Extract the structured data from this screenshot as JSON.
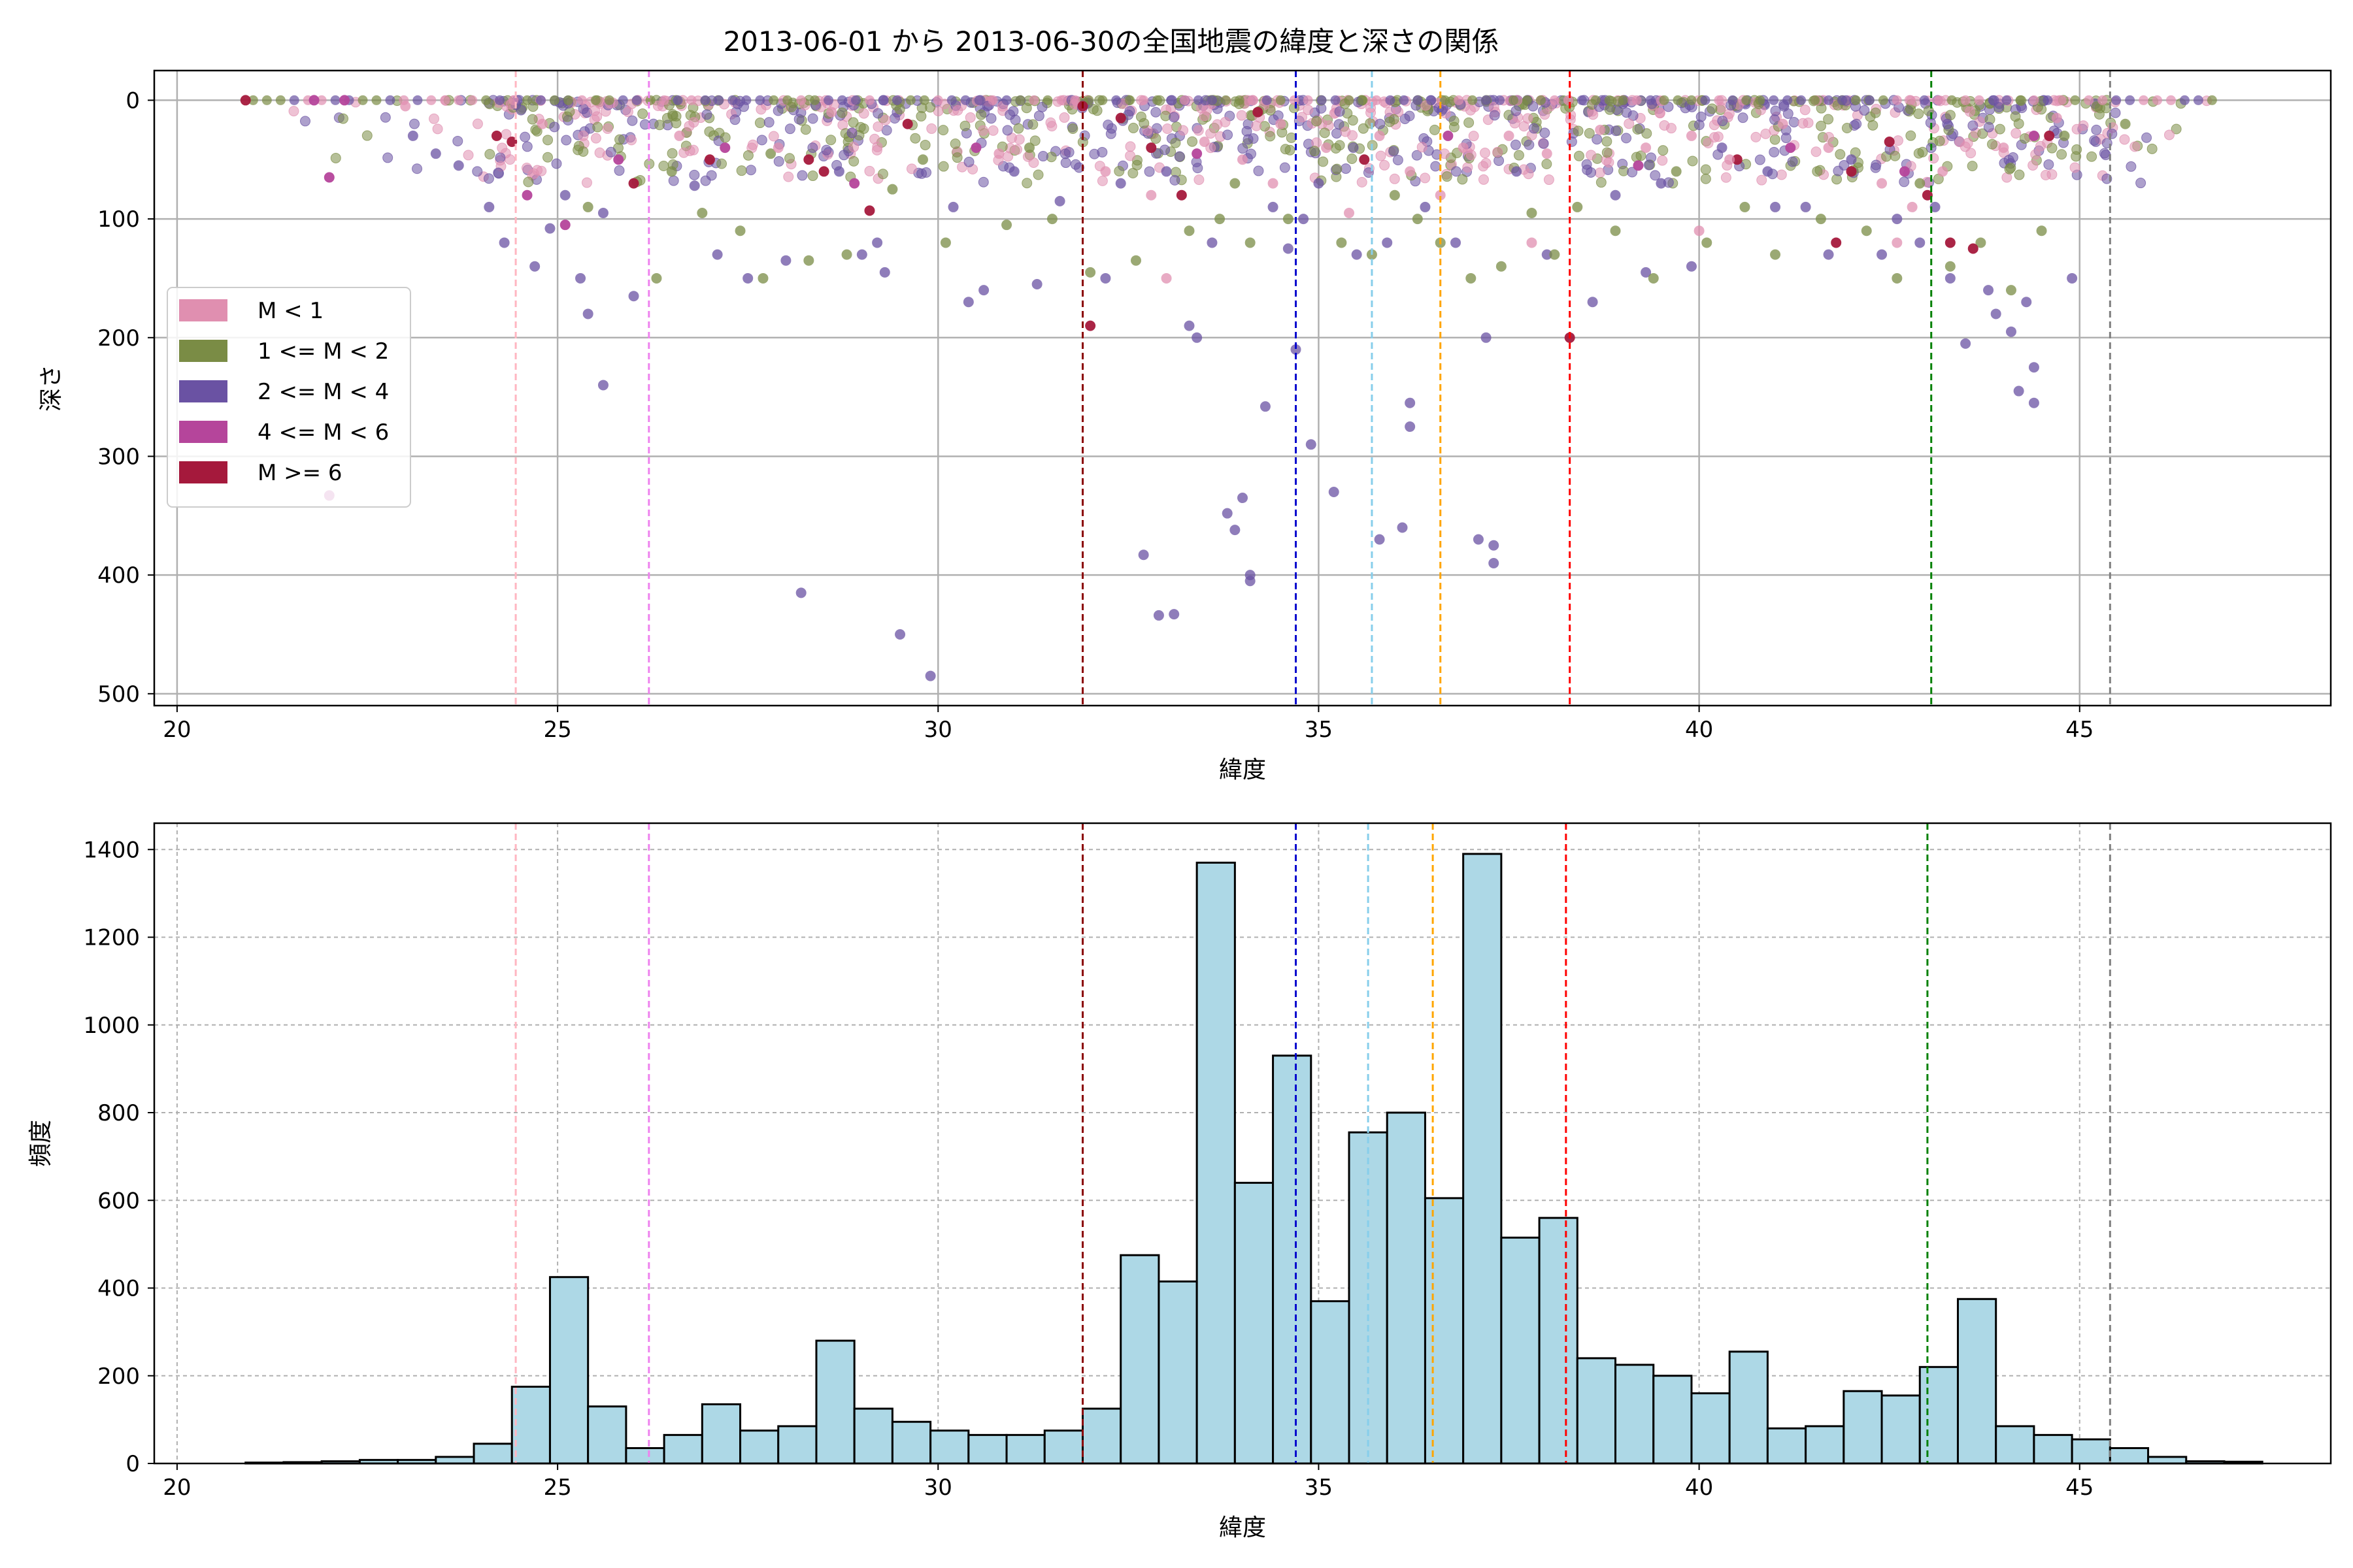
{
  "title": "2013-06-01 から 2013-06-30の全国地震の緯度と深さの関係",
  "chart_data": [
    {
      "type": "scatter",
      "title": "2013-06-01 から 2013-06-30の全国地震の緯度と深さの関係",
      "xlabel": "緯度",
      "ylabel": "深さ",
      "xlim": [
        19.7,
        48.3
      ],
      "ylim": [
        510,
        -25
      ],
      "y_inverted": true,
      "xticks": [
        20,
        25,
        30,
        35,
        40,
        45
      ],
      "yticks": [
        0,
        100,
        200,
        300,
        400,
        500
      ],
      "grid": true,
      "legend_position": "center-left",
      "legend": [
        {
          "label": "M < 1",
          "color": "#e08fb0"
        },
        {
          "label": "1 <= M < 2",
          "color": "#7a8c45"
        },
        {
          "label": "2 <= M < 4",
          "color": "#6a52a3"
        },
        {
          "label": "4 <= M < 6",
          "color": "#b5459b"
        },
        {
          "label": "M >= 6",
          "color": "#a5193c"
        }
      ],
      "vlines": [
        {
          "x": 24.45,
          "color": "#ffb6c1"
        },
        {
          "x": 26.2,
          "color": "#ee82ee"
        },
        {
          "x": 31.9,
          "color": "#8b0000"
        },
        {
          "x": 34.7,
          "color": "#0000cd"
        },
        {
          "x": 35.7,
          "color": "#87ceeb"
        },
        {
          "x": 36.6,
          "color": "#ffa500"
        },
        {
          "x": 38.3,
          "color": "#ff0000"
        },
        {
          "x": 43.05,
          "color": "#008000"
        },
        {
          "x": 45.4,
          "color": "#808080"
        }
      ],
      "series": [
        {
          "name": "2 <= M < 4",
          "points": [
            [
              24.7,
              140
            ],
            [
              24.9,
              108
            ],
            [
              25.3,
              150
            ],
            [
              25.4,
              180
            ],
            [
              25.6,
              240
            ],
            [
              26.0,
              165
            ],
            [
              27.5,
              150
            ],
            [
              28.0,
              135
            ],
            [
              28.2,
              415
            ],
            [
              29.5,
              450
            ],
            [
              29.9,
              485
            ],
            [
              29.3,
              145
            ],
            [
              30.4,
              170
            ],
            [
              30.6,
              160
            ],
            [
              31.3,
              155
            ],
            [
              32.2,
              150
            ],
            [
              32.7,
              383
            ],
            [
              32.9,
              434
            ],
            [
              33.1,
              433
            ],
            [
              33.3,
              190
            ],
            [
              33.4,
              200
            ],
            [
              34.0,
              335
            ],
            [
              34.1,
              400
            ],
            [
              34.1,
              405
            ],
            [
              33.8,
              348
            ],
            [
              33.9,
              362
            ],
            [
              34.3,
              258
            ],
            [
              34.6,
              125
            ],
            [
              34.7,
              210
            ],
            [
              34.8,
              100
            ],
            [
              34.9,
              290
            ],
            [
              35.2,
              330
            ],
            [
              35.5,
              130
            ],
            [
              35.8,
              370
            ],
            [
              36.1,
              360
            ],
            [
              36.2,
              255
            ],
            [
              36.2,
              275
            ],
            [
              37.1,
              370
            ],
            [
              37.2,
              200
            ],
            [
              37.3,
              375
            ],
            [
              37.3,
              390
            ],
            [
              38.0,
              130
            ],
            [
              38.6,
              170
            ],
            [
              39.3,
              145
            ],
            [
              39.9,
              140
            ],
            [
              41.0,
              90
            ],
            [
              41.7,
              130
            ],
            [
              42.4,
              130
            ],
            [
              42.9,
              120
            ],
            [
              43.3,
              150
            ],
            [
              43.5,
              205
            ],
            [
              43.8,
              160
            ],
            [
              44.1,
              195
            ],
            [
              44.3,
              170
            ],
            [
              44.4,
              225
            ],
            [
              44.4,
              255
            ],
            [
              44.2,
              245
            ],
            [
              44.9,
              150
            ],
            [
              43.9,
              180
            ],
            [
              24.3,
              120
            ],
            [
              24.1,
              90
            ],
            [
              23.4,
              45
            ],
            [
              23.7,
              55
            ],
            [
              23.1,
              30
            ],
            [
              25.1,
              80
            ],
            [
              25.6,
              95
            ],
            [
              26.8,
              72
            ],
            [
              27.1,
              130
            ],
            [
              28.7,
              60
            ],
            [
              29.0,
              130
            ],
            [
              29.2,
              120
            ],
            [
              30.2,
              90
            ],
            [
              31.0,
              60
            ],
            [
              31.6,
              85
            ],
            [
              32.4,
              70
            ],
            [
              33.0,
              60
            ],
            [
              33.6,
              120
            ],
            [
              34.4,
              90
            ],
            [
              35.0,
              70
            ],
            [
              35.9,
              120
            ],
            [
              36.4,
              90
            ],
            [
              36.8,
              120
            ],
            [
              37.6,
              60
            ],
            [
              38.9,
              80
            ],
            [
              39.5,
              70
            ],
            [
              40.3,
              40
            ],
            [
              40.9,
              60
            ],
            [
              41.4,
              90
            ],
            [
              42.0,
              50
            ],
            [
              42.6,
              100
            ],
            [
              43.1,
              90
            ]
          ]
        },
        {
          "name": "1 <= M < 2",
          "points": [
            [
              25.4,
              90
            ],
            [
              26.3,
              150
            ],
            [
              26.9,
              95
            ],
            [
              27.4,
              110
            ],
            [
              27.7,
              150
            ],
            [
              28.3,
              135
            ],
            [
              28.8,
              130
            ],
            [
              29.4,
              75
            ],
            [
              30.1,
              120
            ],
            [
              30.9,
              105
            ],
            [
              31.5,
              100
            ],
            [
              32.0,
              145
            ],
            [
              32.6,
              135
            ],
            [
              33.3,
              110
            ],
            [
              33.7,
              100
            ],
            [
              34.1,
              120
            ],
            [
              34.6,
              100
            ],
            [
              35.3,
              120
            ],
            [
              35.7,
              130
            ],
            [
              36.3,
              100
            ],
            [
              36.6,
              120
            ],
            [
              37.0,
              150
            ],
            [
              37.4,
              140
            ],
            [
              37.8,
              95
            ],
            [
              38.1,
              130
            ],
            [
              38.4,
              90
            ],
            [
              38.9,
              110
            ],
            [
              39.4,
              150
            ],
            [
              40.1,
              120
            ],
            [
              40.6,
              90
            ],
            [
              41.0,
              130
            ],
            [
              41.6,
              100
            ],
            [
              42.2,
              110
            ],
            [
              42.6,
              150
            ],
            [
              43.3,
              140
            ],
            [
              43.7,
              120
            ],
            [
              44.1,
              160
            ],
            [
              44.5,
              110
            ],
            [
              44.8,
              30
            ],
            [
              45.6,
              20
            ],
            [
              26.5,
              60
            ],
            [
              27.8,
              45
            ],
            [
              29.8,
              50
            ],
            [
              31.2,
              40
            ],
            [
              33.9,
              70
            ],
            [
              36.0,
              80
            ],
            [
              39.7,
              60
            ],
            [
              42.9,
              70
            ]
          ]
        },
        {
          "name": "M >= 6",
          "points": [
            [
              20.9,
              0
            ],
            [
              24.2,
              30
            ],
            [
              24.4,
              35
            ],
            [
              26.0,
              70
            ],
            [
              27.0,
              50
            ],
            [
              28.3,
              50
            ],
            [
              28.5,
              60
            ],
            [
              29.1,
              93
            ],
            [
              29.6,
              20
            ],
            [
              31.9,
              5
            ],
            [
              32.0,
              190
            ],
            [
              32.4,
              15
            ],
            [
              32.8,
              40
            ],
            [
              33.2,
              80
            ],
            [
              34.2,
              10
            ],
            [
              35.6,
              50
            ],
            [
              38.3,
              200
            ],
            [
              40.5,
              50
            ],
            [
              41.8,
              120
            ],
            [
              42.0,
              60
            ],
            [
              42.5,
              35
            ],
            [
              43.0,
              80
            ],
            [
              43.3,
              120
            ],
            [
              43.6,
              125
            ],
            [
              44.6,
              30
            ]
          ]
        },
        {
          "name": "4 <= M < 6",
          "points": [
            [
              21.8,
              0
            ],
            [
              22.0,
              65
            ],
            [
              22.2,
              0
            ],
            [
              22.0,
              333
            ],
            [
              24.6,
              80
            ],
            [
              25.1,
              105
            ],
            [
              25.8,
              50
            ],
            [
              27.2,
              40
            ],
            [
              28.9,
              70
            ],
            [
              30.5,
              40
            ],
            [
              33.4,
              45
            ],
            [
              36.7,
              30
            ],
            [
              39.2,
              55
            ],
            [
              41.2,
              40
            ],
            [
              42.7,
              60
            ],
            [
              44.4,
              30
            ]
          ]
        },
        {
          "name": "M < 1",
          "points": [
            [
              23.0,
              5
            ],
            [
              24.8,
              20
            ],
            [
              26.6,
              30
            ],
            [
              27.9,
              40
            ],
            [
              28.6,
              10
            ],
            [
              30.8,
              45
            ],
            [
              32.2,
              60
            ],
            [
              32.8,
              80
            ],
            [
              33.5,
              35
            ],
            [
              34.0,
              50
            ],
            [
              34.5,
              20
            ],
            [
              35.1,
              40
            ],
            [
              35.8,
              30
            ],
            [
              36.2,
              60
            ],
            [
              36.9,
              40
            ],
            [
              37.5,
              30
            ],
            [
              38.0,
              45
            ],
            [
              38.7,
              25
            ],
            [
              39.3,
              40
            ],
            [
              39.9,
              30
            ],
            [
              40.4,
              50
            ],
            [
              41.1,
              20
            ],
            [
              41.7,
              40
            ],
            [
              42.4,
              70
            ],
            [
              42.8,
              90
            ],
            [
              43.2,
              60
            ],
            [
              44.0,
              40
            ],
            [
              44.7,
              15
            ],
            [
              33.0,
              150
            ],
            [
              34.4,
              70
            ],
            [
              35.4,
              95
            ],
            [
              36.6,
              80
            ],
            [
              37.8,
              120
            ],
            [
              40.0,
              110
            ],
            [
              42.6,
              120
            ]
          ]
        }
      ]
    },
    {
      "type": "bar",
      "xlabel": "緯度",
      "ylabel": "頻度",
      "xlim": [
        19.7,
        48.3
      ],
      "ylim": [
        0,
        1460
      ],
      "xticks": [
        20,
        25,
        30,
        35,
        40,
        45
      ],
      "yticks": [
        0,
        200,
        400,
        600,
        800,
        1000,
        1200,
        1400
      ],
      "grid": true,
      "bin_start": 20.9,
      "bin_width": 0.5,
      "values": [
        2,
        3,
        5,
        8,
        8,
        15,
        45,
        175,
        425,
        130,
        35,
        65,
        135,
        75,
        85,
        280,
        125,
        95,
        75,
        65,
        65,
        75,
        125,
        475,
        415,
        1370,
        640,
        930,
        370,
        755,
        800,
        605,
        1390,
        515,
        560,
        240,
        225,
        200,
        160,
        255,
        80,
        85,
        165,
        155,
        220,
        375,
        85,
        65,
        55,
        35,
        15,
        5,
        4
      ],
      "bar_color": "#add8e6",
      "edge_color": "#000000",
      "vlines": [
        {
          "x": 24.45,
          "color": "#ffb6c1"
        },
        {
          "x": 26.2,
          "color": "#ee82ee"
        },
        {
          "x": 31.9,
          "color": "#8b0000"
        },
        {
          "x": 34.7,
          "color": "#0000cd"
        },
        {
          "x": 35.65,
          "color": "#87ceeb"
        },
        {
          "x": 36.5,
          "color": "#ffa500"
        },
        {
          "x": 38.25,
          "color": "#ff0000"
        },
        {
          "x": 43.0,
          "color": "#008000"
        },
        {
          "x": 45.4,
          "color": "#808080"
        }
      ]
    }
  ]
}
